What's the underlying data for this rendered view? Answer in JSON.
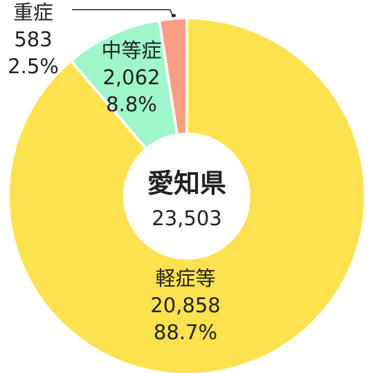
{
  "chart_data": {
    "type": "donut",
    "center_title": "愛知県",
    "total": 23503,
    "total_label": "23,503",
    "categories": [
      "軽症等",
      "中等症",
      "重症"
    ],
    "values": [
      20858,
      2062,
      583
    ],
    "value_labels": [
      "20,858",
      "2,062",
      "583"
    ],
    "percent_values": [
      88.7,
      8.8,
      2.5
    ],
    "percent_labels": [
      "88.7%",
      "8.8%",
      "2.5%"
    ],
    "colors": [
      "#fde24f",
      "#9ff6cb",
      "#f99e85"
    ]
  }
}
